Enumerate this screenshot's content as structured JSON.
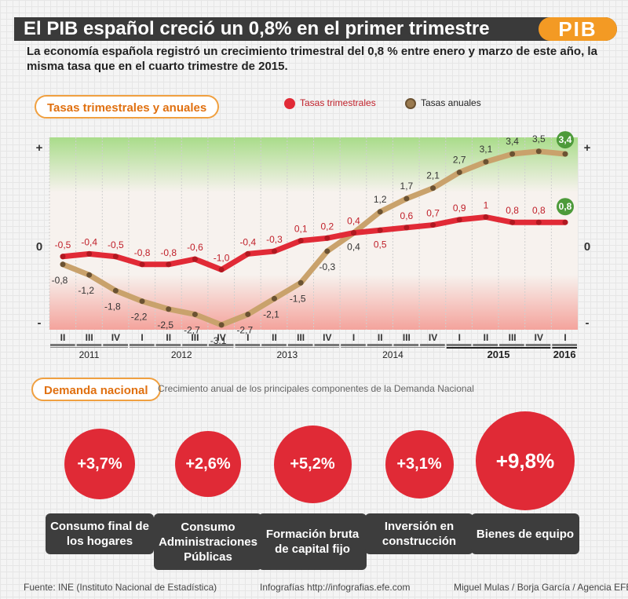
{
  "header": {
    "title": "El PIB español creció un 0,8% en el primer trimestre",
    "tag": "PIB",
    "subtitle": "La economía española registró un crecimiento trimestral del 0,8 % entre enero y marzo de este año, la misma tasa que en el cuarto trimestre de 2015."
  },
  "chart_section": {
    "label": "Tasas trimestrales y anuales",
    "legend_quarterly": "Tasas trimestrales",
    "legend_annual": "Tasas anuales"
  },
  "chart_data": {
    "type": "line",
    "x": [
      "II",
      "III",
      "IV",
      "I",
      "II",
      "III",
      "IV",
      "I",
      "II",
      "III",
      "IV",
      "I",
      "II",
      "III",
      "IV",
      "I",
      "II",
      "III",
      "IV",
      "I"
    ],
    "years": [
      {
        "label": "2011",
        "start": 0,
        "end": 2
      },
      {
        "label": "2012",
        "start": 3,
        "end": 6
      },
      {
        "label": "2013",
        "start": 7,
        "end": 10
      },
      {
        "label": "2014",
        "start": 11,
        "end": 14
      },
      {
        "label": "2015",
        "start": 15,
        "end": 18
      },
      {
        "label": "2016",
        "start": 19,
        "end": 19
      }
    ],
    "series": [
      {
        "name": "Tasas trimestrales",
        "color": "#e12a36",
        "values": [
          -0.5,
          -0.4,
          -0.5,
          -0.8,
          -0.8,
          -0.6,
          -1.0,
          -0.4,
          -0.3,
          0.1,
          0.2,
          0.4,
          0.5,
          0.6,
          0.7,
          0.9,
          1.0,
          0.8,
          0.8,
          0.8
        ],
        "labels": [
          "-0,5",
          "-0,4",
          "-0,5",
          "-0,8",
          "-0,8",
          "-0,6",
          "-1,0",
          "-0,4",
          "-0,3",
          "0,1",
          "0,2",
          "0,4",
          "0,5",
          "0,6",
          "0,7",
          "0,9",
          "1",
          "0,8",
          "0,8",
          "0,8"
        ]
      },
      {
        "name": "Tasas anuales",
        "color": "#c9a26c",
        "values": [
          -0.8,
          -1.2,
          -1.8,
          -2.2,
          -2.5,
          -2.7,
          -3.1,
          -2.7,
          -2.1,
          -1.5,
          -0.3,
          0.4,
          1.2,
          1.7,
          2.1,
          2.7,
          3.1,
          3.4,
          3.5,
          3.4
        ],
        "labels": [
          "-0,8",
          "-1,2",
          "-1,8",
          "-2,2",
          "-2,5",
          "-2,7",
          "-3,1",
          "-2,7",
          "-2,1",
          "-1,5",
          "-0,3",
          "0,4",
          "1,2",
          "1,7",
          "2,1",
          "2,7",
          "3,1",
          "3,4",
          "3,5",
          "3,4"
        ]
      }
    ],
    "axis": {
      "plus": "+",
      "zero": "0",
      "minus": "-"
    },
    "ylim": [
      -3.3,
      4.1
    ],
    "grid": true
  },
  "demand_section": {
    "label": "Demanda nacional",
    "subtitle": "Crecimiento anual de los principales componentes de la Demanda Nacional",
    "items": [
      {
        "value": "+3,7%",
        "level": 3.7,
        "label": "Consumo final de los hogares"
      },
      {
        "value": "+2,6%",
        "level": 2.6,
        "label": "Consumo Administraciones Públicas"
      },
      {
        "value": "+5,2%",
        "level": 5.2,
        "label": "Formación bruta de capital fijo"
      },
      {
        "value": "+3,1%",
        "level": 3.1,
        "label": "Inversión en construcción"
      },
      {
        "value": "+9,8%",
        "level": 9.8,
        "label": "Bienes de equipo"
      }
    ]
  },
  "footer": {
    "source": "Fuente: INE (Instituto Nacional de Estadística)",
    "credit": "Infografías http://infografias.efe.com",
    "authors": "Miguel Mulas / Borja García / Agencia EFE"
  }
}
